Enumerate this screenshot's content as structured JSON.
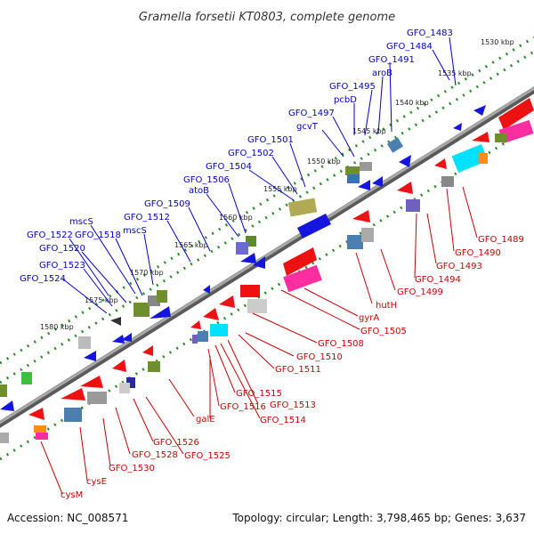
{
  "title": "Gramella forsetii KT0803, complete genome",
  "footer": {
    "accession": "Accession: NC_008571",
    "summary": "Topology: circular; Length: 3,798,465 bp; Genes: 3,637"
  },
  "colors": {
    "backbone": "#8a8a8a",
    "ticks": "#2e8b2e",
    "forward_label": "#0000cc",
    "reverse_label": "#cc0000"
  },
  "kbp_ticks": [
    "1530 kbp",
    "1535 kbp",
    "1540 kbp",
    "1545 kbp",
    "1550 kbp",
    "1555 kbp",
    "1560 kbp",
    "1565 kbp",
    "1570 kbp",
    "1575 kbp",
    "1580 kbp"
  ],
  "forward_labels": [
    "GFO_1483",
    "GFO_1484",
    "GFO_1491",
    "aroB",
    "GFO_1495",
    "pcbD",
    "GFO_1497",
    "gcvT",
    "GFO_1501",
    "GFO_1502",
    "GFO_1504",
    "GFO_1506",
    "atoB",
    "GFO_1509",
    "GFO_1512",
    "mscS",
    "mscS",
    "GFO_1518",
    "GFO_1522",
    "GFO_1520",
    "GFO_1523",
    "GFO_1524"
  ],
  "reverse_labels": [
    "GFO_1489",
    "GFO_1490",
    "GFO_1493",
    "GFO_1494",
    "GFO_1499",
    "hutH",
    "gyrA",
    "GFO_1505",
    "GFO_1508",
    "GFO_1510",
    "GFO_1511",
    "GFO_1513",
    "GFO_1514",
    "GFO_1515",
    "GFO_1516",
    "galE",
    "GFO_1526",
    "GFO_1525",
    "GFO_1528",
    "GFO_1530",
    "cysE",
    "cysM"
  ]
}
